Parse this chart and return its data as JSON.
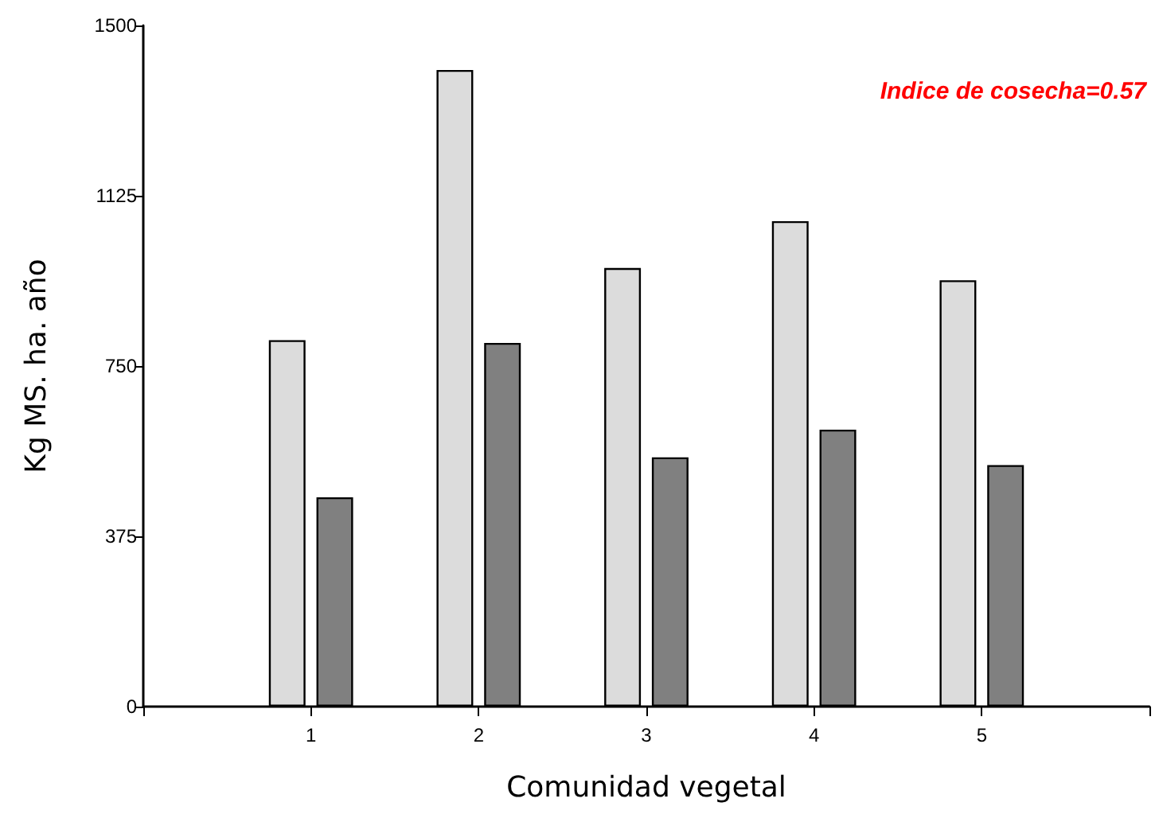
{
  "chart_data": {
    "type": "bar",
    "xlabel": "Comunidad vegetal",
    "ylabel": "Kg MS. ha. año",
    "categories": [
      null,
      "1",
      "2",
      "3",
      "4",
      "5",
      null
    ],
    "series": [
      {
        "color": "#dcdcdc",
        "values": [
          null,
          807,
          1402,
          966,
          1069,
          939,
          null
        ]
      },
      {
        "color": "#808080",
        "values": [
          null,
          461,
          801,
          549,
          610,
          532,
          null
        ]
      }
    ],
    "ylim": [
      0,
      1500
    ],
    "yticks": [
      0,
      375,
      750,
      1125,
      1500
    ],
    "annotations": [
      "Indice de cosecha=0.57"
    ],
    "grid": false
  }
}
